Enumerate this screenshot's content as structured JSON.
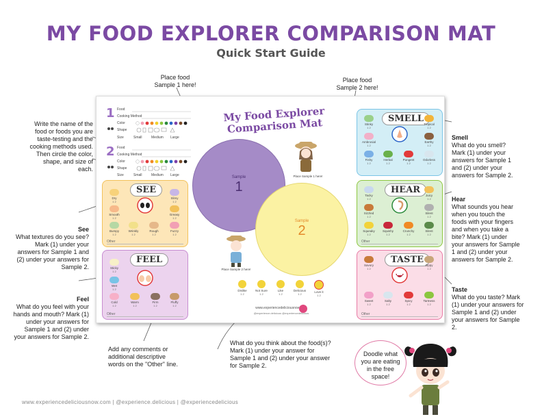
{
  "title": "MY FOOD EXPLORER COMPARISON MAT",
  "subtitle": "Quick Start Guide",
  "callouts": {
    "place1": "Place food\nSample 1 here!",
    "place2": "Place food\nSample 2 here!",
    "write_name": "Write the name of the food or foods you are taste-testing and the cooking methods used. Then circle the color, shape, and size of each.",
    "see_heading": "See",
    "see_body": "What textures do you see? Mark (1) under your answers for Sample 1 and (2) under your answers for Sample 2.",
    "feel_heading": "Feel",
    "feel_body": "What do you feel with your hands and mouth? Mark (1) under your answers for Sample 1 and (2) under your answers for Sample 2.",
    "smell_heading": "Smell",
    "smell_body": "What do you smell? Mark (1) under your answers for Sample 1 and (2) under your answers for Sample 2.",
    "hear_heading": "Hear",
    "hear_body": "What sounds you hear when you touch the foods with your fingers and when you take a bite? Mark (1) under your answers for Sample 1 and (2) under your answers for Sample 2.",
    "taste_heading": "Taste",
    "taste_body": "What do you taste? Mark (1) under your answers for Sample 1 and (2) under your answers for Sample 2.",
    "other": "Add any comments or additional descriptive words on the \"Other\" line.",
    "think": "What do you think about the food(s)? Mark (1) under your answer for Sample 1 and (2) under your answer for Sample 2.",
    "doodle": "Doodle what you are eating in the free space!"
  },
  "mat": {
    "title_line1": "My Food Explorer",
    "title_line2": "Comparison Mat",
    "sample1_label": "Sample",
    "sample1_num": "1",
    "sample2_label": "Sample",
    "sample2_num": "2",
    "place_sample1": "Place Sample 1 here!",
    "place_sample2": "Place Sample 2 here!",
    "food_label": "Food",
    "cooking_label": "Cooking Method",
    "color_label": "Color",
    "shape_label": "Shape",
    "size_small": "Small",
    "size_medium": "Medium",
    "size_large": "Large",
    "size_label": "Size",
    "num1": "1",
    "num2": "2",
    "other_label": "Other",
    "see_label": "SEE",
    "feel_label": "FEEL",
    "smell_label": "SMELL",
    "hear_label": "HEAR",
    "taste_label": "TASTE",
    "website": "www.experiencedeliciousnow.com",
    "social": "@experience.delicious   @experiencedelicious",
    "see_items": [
      "Dry",
      "Slimy",
      "Smooth",
      "Greasy",
      "Bumpy",
      "Wrinkly",
      "Rough",
      "Fuzzy"
    ],
    "feel_items": [
      "Sticky",
      "Wet",
      "Cold",
      "Warm",
      "Firm",
      "Fluffy"
    ],
    "smell_items": [
      "Stinky",
      "Tropical",
      "Ambrosial",
      "Earthy",
      "Fishy",
      "Herbal",
      "Pungent",
      "Odorless"
    ],
    "hear_items": [
      "Tacky",
      "Juicy",
      "Sizzled",
      "Silent",
      "Squeaky",
      "Squishy",
      "Crunchy",
      "Silent"
    ],
    "taste_items": [
      "Savory",
      "Zippy",
      "Sweet",
      "Salty",
      "Spicy",
      "Tartness"
    ],
    "faces": [
      "Dislike",
      "Not Sure",
      "Like",
      "Delicious",
      "Love it"
    ],
    "check": "1 2"
  },
  "footer": "www.experiencedeliciousnow.com  |  @experience.delicious  |  @experiencedelicious",
  "colors": {
    "title": "#7b4aa3",
    "see_panel": "#fde6b8",
    "feel_panel": "#ecd3ee",
    "smell_panel": "#d3eef6",
    "hear_panel": "#dcefd3",
    "taste_panel": "#fbdde7",
    "circle1": "#a58bc7",
    "circle2": "#fbf2a3"
  }
}
